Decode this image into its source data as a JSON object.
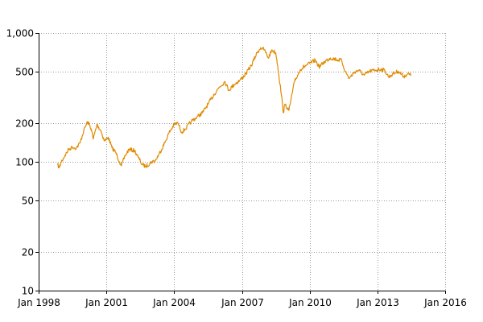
{
  "chart_data": {
    "type": "line",
    "title": "",
    "xlabel": "",
    "ylabel": "",
    "y_scale": "log",
    "grid": true,
    "legend": "none",
    "xlim": [
      "1998-01",
      "2016-01"
    ],
    "ylim": [
      10,
      1000
    ],
    "x_ticks": [
      {
        "value": "1998-01",
        "label": "Jan 1998"
      },
      {
        "value": "2001-01",
        "label": "Jan 2001"
      },
      {
        "value": "2004-01",
        "label": "Jan 2004"
      },
      {
        "value": "2007-01",
        "label": "Jan 2007"
      },
      {
        "value": "2010-01",
        "label": "Jan 2010"
      },
      {
        "value": "2013-01",
        "label": "Jan 2013"
      },
      {
        "value": "2016-01",
        "label": "Jan 2016"
      }
    ],
    "y_ticks": [
      {
        "value": 10,
        "label": "10"
      },
      {
        "value": 20,
        "label": "20"
      },
      {
        "value": 50,
        "label": "50"
      },
      {
        "value": 100,
        "label": "100"
      },
      {
        "value": 200,
        "label": "200"
      },
      {
        "value": 500,
        "label": "500"
      },
      {
        "value": 1000,
        "label": "1,000"
      }
    ],
    "series": [
      {
        "color": "#e08a00",
        "points": [
          [
            "1998-11",
            95
          ],
          [
            "1998-12",
            90
          ],
          [
            "1999-01",
            100
          ],
          [
            "1999-03",
            112
          ],
          [
            "1999-05",
            125
          ],
          [
            "1999-07",
            130
          ],
          [
            "1999-09",
            128
          ],
          [
            "1999-11",
            140
          ],
          [
            "2000-01",
            175
          ],
          [
            "2000-03",
            205
          ],
          [
            "2000-05",
            180
          ],
          [
            "2000-06",
            150
          ],
          [
            "2000-08",
            195
          ],
          [
            "2000-10",
            175
          ],
          [
            "2000-12",
            145
          ],
          [
            "2001-02",
            155
          ],
          [
            "2001-04",
            128
          ],
          [
            "2001-06",
            118
          ],
          [
            "2001-08",
            100
          ],
          [
            "2001-09",
            93
          ],
          [
            "2001-11",
            112
          ],
          [
            "2002-01",
            125
          ],
          [
            "2002-04",
            122
          ],
          [
            "2002-06",
            108
          ],
          [
            "2002-08",
            95
          ],
          [
            "2002-10",
            92
          ],
          [
            "2003-01",
            100
          ],
          [
            "2003-03",
            102
          ],
          [
            "2003-05",
            115
          ],
          [
            "2003-08",
            140
          ],
          [
            "2003-10",
            165
          ],
          [
            "2004-01",
            195
          ],
          [
            "2004-03",
            200
          ],
          [
            "2004-05",
            170
          ],
          [
            "2004-07",
            180
          ],
          [
            "2004-10",
            205
          ],
          [
            "2005-01",
            222
          ],
          [
            "2005-04",
            240
          ],
          [
            "2005-07",
            280
          ],
          [
            "2005-10",
            330
          ],
          [
            "2006-01",
            380
          ],
          [
            "2006-04",
            420
          ],
          [
            "2006-06",
            360
          ],
          [
            "2006-09",
            400
          ],
          [
            "2006-12",
            430
          ],
          [
            "2007-03",
            480
          ],
          [
            "2007-06",
            560
          ],
          [
            "2007-09",
            700
          ],
          [
            "2007-11",
            770
          ],
          [
            "2008-01",
            740
          ],
          [
            "2008-03",
            640
          ],
          [
            "2008-05",
            740
          ],
          [
            "2008-07",
            700
          ],
          [
            "2008-08",
            560
          ],
          [
            "2008-10",
            330
          ],
          [
            "2008-11",
            240
          ],
          [
            "2008-12",
            280
          ],
          [
            "2009-02",
            250
          ],
          [
            "2009-03",
            300
          ],
          [
            "2009-05",
            420
          ],
          [
            "2009-08",
            520
          ],
          [
            "2009-11",
            560
          ],
          [
            "2010-01",
            580
          ],
          [
            "2010-04",
            615
          ],
          [
            "2010-06",
            545
          ],
          [
            "2010-09",
            600
          ],
          [
            "2010-12",
            640
          ],
          [
            "2011-03",
            625
          ],
          [
            "2011-06",
            610
          ],
          [
            "2011-08",
            500
          ],
          [
            "2011-10",
            445
          ],
          [
            "2012-01",
            500
          ],
          [
            "2012-03",
            515
          ],
          [
            "2012-06",
            470
          ],
          [
            "2012-09",
            505
          ],
          [
            "2012-12",
            515
          ],
          [
            "2013-03",
            525
          ],
          [
            "2013-05",
            510
          ],
          [
            "2013-07",
            455
          ],
          [
            "2013-09",
            480
          ],
          [
            "2013-12",
            505
          ],
          [
            "2014-03",
            460
          ],
          [
            "2014-05",
            480
          ],
          [
            "2014-07",
            470
          ]
        ]
      }
    ]
  }
}
